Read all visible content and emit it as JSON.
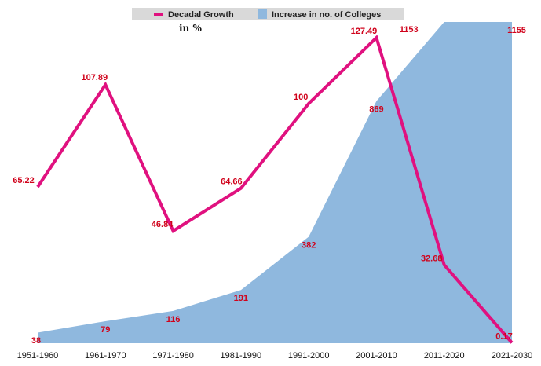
{
  "chart_data": {
    "type": "line+area",
    "categories": [
      "1951-1960",
      "1961-1970",
      "1971-1980",
      "1981-1990",
      "1991-2000",
      "2001-2010",
      "2011-2020",
      "2021-2030"
    ],
    "series": [
      {
        "name": "Decadal Growth",
        "kind": "line",
        "color": "#e0117f",
        "values": [
          65.22,
          107.89,
          46.84,
          64.66,
          100,
          127.49,
          32.68,
          0.17
        ],
        "labels": [
          "65.22",
          "107.89",
          "46.84",
          "64.66",
          "100",
          "127.49",
          "32.68",
          "0.17"
        ]
      },
      {
        "name": "Increase in no. of Colleges",
        "kind": "area",
        "color": "#8fb8de",
        "values": [
          38,
          79,
          116,
          191,
          382,
          869,
          1153,
          1155
        ],
        "labels": [
          "38",
          "79",
          "116",
          "191",
          "382",
          "869",
          "1153",
          "1155"
        ]
      }
    ],
    "line_unit": "in %",
    "line_ylim": [
      0,
      127.49
    ],
    "area_ylim": [
      0,
      1153
    ],
    "legend_position": "top-center"
  }
}
